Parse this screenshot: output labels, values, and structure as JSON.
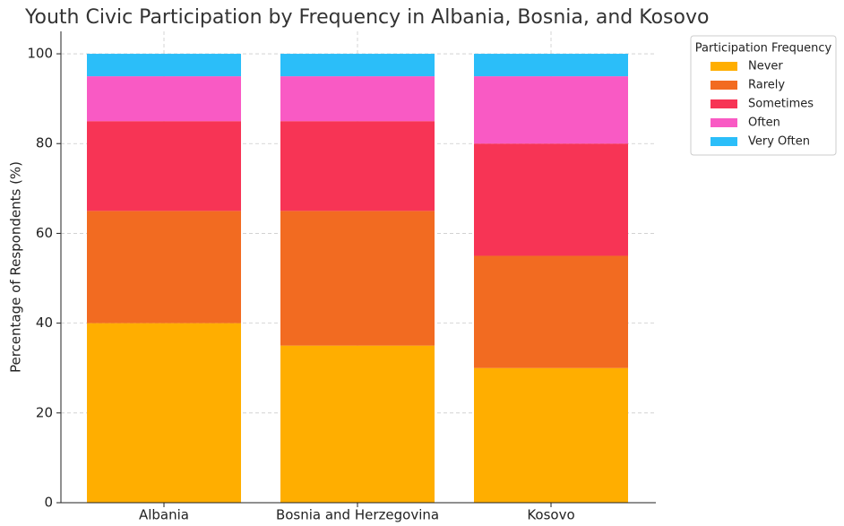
{
  "chart_data": {
    "type": "stacked_bar",
    "title": "Youth Civic Participation by Frequency in Albania, Bosnia, and Kosovo",
    "ylabel": "Percentage of Respondents (%)",
    "categories": [
      "Albania",
      "Bosnia and Herzegovina",
      "Kosovo"
    ],
    "series": [
      {
        "name": "Never",
        "color": "#ffae00",
        "values": [
          40,
          35,
          30
        ]
      },
      {
        "name": "Rarely",
        "color": "#f26b21",
        "values": [
          25,
          30,
          25
        ]
      },
      {
        "name": "Sometimes",
        "color": "#f73455",
        "values": [
          20,
          20,
          25
        ]
      },
      {
        "name": "Often",
        "color": "#f95ac4",
        "values": [
          10,
          10,
          15
        ]
      },
      {
        "name": "Very Often",
        "color": "#2bbef9",
        "values": [
          5,
          5,
          5
        ]
      }
    ],
    "ylim": [
      0,
      105
    ],
    "yticks": [
      0,
      20,
      40,
      60,
      80,
      100
    ],
    "grid": true,
    "legend_title": "Participation Frequency",
    "legend_position": "outside-right"
  }
}
